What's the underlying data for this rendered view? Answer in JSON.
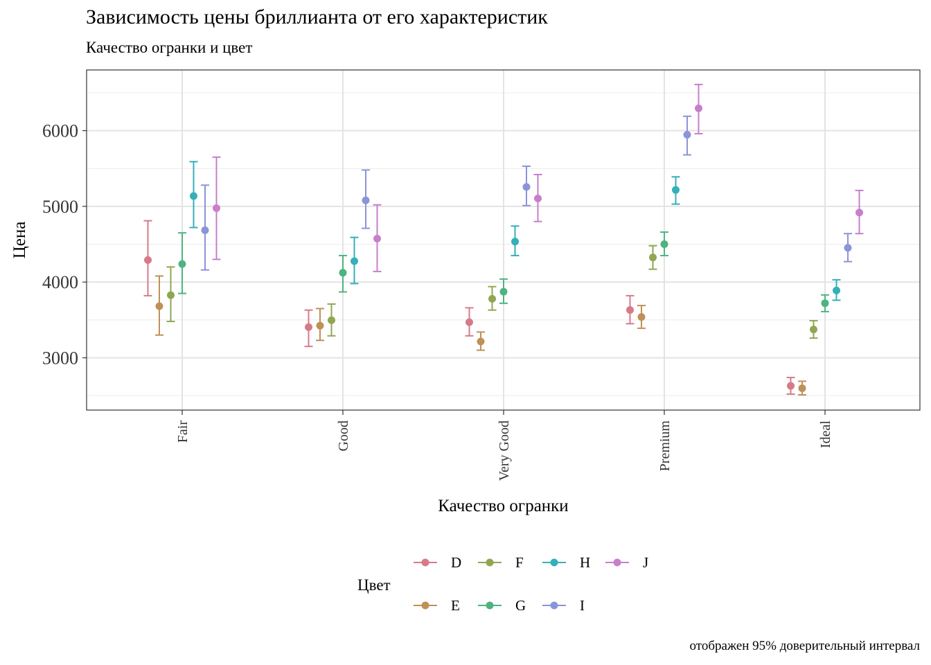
{
  "title": "Зависимость цены бриллианта от его характеристик",
  "subtitle": "Качество огранки и цвет",
  "caption": "отображен 95% доверительный интервал",
  "chart_data": {
    "type": "scatter",
    "subtype": "point-with-errorbars",
    "xlabel": "Качество огранки",
    "ylabel": "Цена",
    "categories": [
      "Fair",
      "Good",
      "Very Good",
      "Premium",
      "Ideal"
    ],
    "ylim": [
      2330,
      6930
    ],
    "yticks": [
      3000,
      4000,
      5000,
      6000
    ],
    "grid": true,
    "legend": {
      "title": "Цвет",
      "placement": "bottom"
    },
    "series": [
      {
        "name": "D",
        "color": "#D67A8A",
        "values": [
          4291,
          3405,
          3470,
          3631,
          2629
        ],
        "lower": [
          3820,
          3150,
          3290,
          3450,
          2520
        ],
        "upper": [
          4810,
          3630,
          3660,
          3820,
          2740
        ]
      },
      {
        "name": "E",
        "color": "#BF9057",
        "values": [
          3682,
          3424,
          3215,
          3539,
          2598
        ],
        "lower": [
          3300,
          3230,
          3100,
          3390,
          2510
        ],
        "upper": [
          4080,
          3650,
          3340,
          3690,
          2690
        ]
      },
      {
        "name": "F",
        "color": "#8FA752",
        "values": [
          3827,
          3496,
          3779,
          4325,
          3374
        ],
        "lower": [
          3480,
          3290,
          3630,
          4170,
          3260
        ],
        "upper": [
          4200,
          3710,
          3940,
          4480,
          3490
        ]
      },
      {
        "name": "G",
        "color": "#4DB380",
        "values": [
          4239,
          4123,
          3873,
          4501,
          3721
        ],
        "lower": [
          3850,
          3870,
          3720,
          4350,
          3610
        ],
        "upper": [
          4650,
          4350,
          4040,
          4660,
          3830
        ]
      },
      {
        "name": "H",
        "color": "#35AFB8",
        "values": [
          5136,
          4276,
          4535,
          5217,
          3889
        ],
        "lower": [
          4720,
          3980,
          4350,
          5030,
          3760
        ],
        "upper": [
          5590,
          4590,
          4740,
          5390,
          4030
        ]
      },
      {
        "name": "I",
        "color": "#8A94D9",
        "values": [
          4685,
          5079,
          5256,
          5946,
          4452
        ],
        "lower": [
          4160,
          4710,
          5010,
          5680,
          4270
        ],
        "upper": [
          5280,
          5480,
          5530,
          6190,
          4640
        ]
      },
      {
        "name": "J",
        "color": "#C77FCC",
        "values": [
          4976,
          4574,
          5104,
          6295,
          4918
        ],
        "lower": [
          4300,
          4140,
          4800,
          5960,
          4640
        ],
        "upper": [
          5650,
          5020,
          5420,
          6610,
          5210
        ]
      }
    ]
  }
}
